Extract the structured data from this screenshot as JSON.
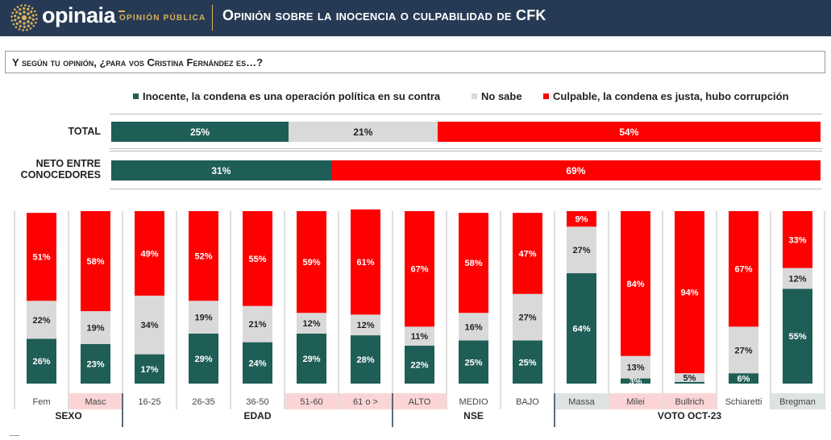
{
  "header": {
    "brand": "opinaia",
    "brand_sub": "OPINIÓN PÚBLICA",
    "title": "Opinión sobre la inocencia o culpabilidad de CFK",
    "bg_color": "#273a55",
    "accent_color": "#d9b25a"
  },
  "question": "Y según tu opinión, ¿para vos Cristina Fernández es…?",
  "legend": [
    {
      "label": "Inocente, la condena es una operación política en su contra",
      "color": "#1f5e57"
    },
    {
      "label": "No sabe",
      "color": "#d9d9d9"
    },
    {
      "label": "Culpable, la condena es justa, hubo corrupción",
      "color": "#ff0000"
    }
  ],
  "chart_data": [
    {
      "type": "bar",
      "orientation": "horizontal",
      "stacked": true,
      "categories": [
        "TOTAL",
        "NETO ENTRE CONOCEDORES"
      ],
      "series": [
        {
          "name": "Inocente, la condena es una operación política en su contra",
          "values": [
            25,
            31
          ],
          "labels": [
            "25%",
            "31%"
          ],
          "color": "#1f5e57"
        },
        {
          "name": "No sabe",
          "values": [
            21,
            0
          ],
          "labels": [
            "21%",
            ""
          ],
          "color": "#d9d9d9"
        },
        {
          "name": "Culpable, la condena es justa, hubo corrupción",
          "values": [
            54,
            69
          ],
          "labels": [
            "54%",
            "69%"
          ],
          "color": "#ff0000"
        }
      ],
      "unit": "%"
    },
    {
      "type": "bar",
      "orientation": "vertical",
      "stacked": true,
      "categories": [
        "Fem",
        "Masc",
        "16-25",
        "26-35",
        "36-50",
        "51-60",
        "61 o >",
        "ALTO",
        "MEDIO",
        "BAJO",
        "Massa",
        "Milei",
        "Bullrich",
        "Schiaretti",
        "Bregman"
      ],
      "groups": [
        {
          "name": "SEXO",
          "count": 2
        },
        {
          "name": "EDAD",
          "count": 5
        },
        {
          "name": "NSE",
          "count": 3
        },
        {
          "name": "VOTO OCT-23",
          "count": 5
        }
      ],
      "highlighted_categories": [
        "Masc",
        "51-60",
        "61 o >",
        "ALTO",
        "Milei",
        "Bullrich"
      ],
      "alt_highlighted_categories": [
        "Massa",
        "Bregman"
      ],
      "series": [
        {
          "name": "Inocente, la condena es una operación política en su contra",
          "values": [
            26,
            23,
            17,
            29,
            24,
            29,
            28,
            22,
            25,
            25,
            64,
            3,
            1,
            6,
            55
          ],
          "labels": [
            "26%",
            "23%",
            "17%",
            "29%",
            "24%",
            "29%",
            "28%",
            "22%",
            "25%",
            "25%",
            "64%",
            "3%",
            "",
            "6%",
            "55%"
          ],
          "color": "#1f5e57"
        },
        {
          "name": "No sabe",
          "values": [
            22,
            19,
            34,
            19,
            21,
            12,
            12,
            11,
            16,
            27,
            27,
            13,
            5,
            27,
            12
          ],
          "labels": [
            "22%",
            "19%",
            "34%",
            "19%",
            "21%",
            "12%",
            "12%",
            "11%",
            "16%",
            "27%",
            "27%",
            "13%",
            "5%",
            "27%",
            "12%"
          ],
          "color": "#d9d9d9"
        },
        {
          "name": "Culpable, la condena es justa, hubo corrupción",
          "values": [
            51,
            58,
            49,
            52,
            55,
            59,
            61,
            67,
            58,
            47,
            9,
            84,
            94,
            67,
            33
          ],
          "labels": [
            "51%",
            "58%",
            "49%",
            "52%",
            "55%",
            "59%",
            "61%",
            "67%",
            "58%",
            "47%",
            "9%",
            "84%",
            "94%",
            "67%",
            "33%"
          ],
          "color": "#ff0000"
        }
      ],
      "ylim": [
        0,
        100
      ],
      "unit": "%"
    }
  ]
}
